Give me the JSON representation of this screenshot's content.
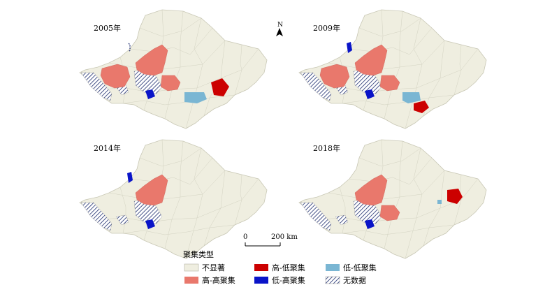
{
  "panels": [
    {
      "year": "2005年"
    },
    {
      "year": "2009年"
    },
    {
      "year": "2014年"
    },
    {
      "year": "2018年"
    }
  ],
  "north_arrow": {
    "letter": "N"
  },
  "scale_bar": {
    "zero": "0",
    "distance": "200 km"
  },
  "legend": {
    "title": "聚集类型",
    "items": [
      {
        "key": "ns",
        "label": "不显著",
        "color": "#efeee0"
      },
      {
        "key": "hh",
        "label": "高-高聚集",
        "color": "#e9786c"
      },
      {
        "key": "hl",
        "label": "高-低聚集",
        "color": "#cc0000"
      },
      {
        "key": "lh",
        "label": "低-高聚集",
        "color": "#0a14c8"
      },
      {
        "key": "ll",
        "label": "低-低聚集",
        "color": "#7ab6d3"
      },
      {
        "key": "nd",
        "label": "无数据",
        "color": "hatch-navy"
      }
    ]
  }
}
